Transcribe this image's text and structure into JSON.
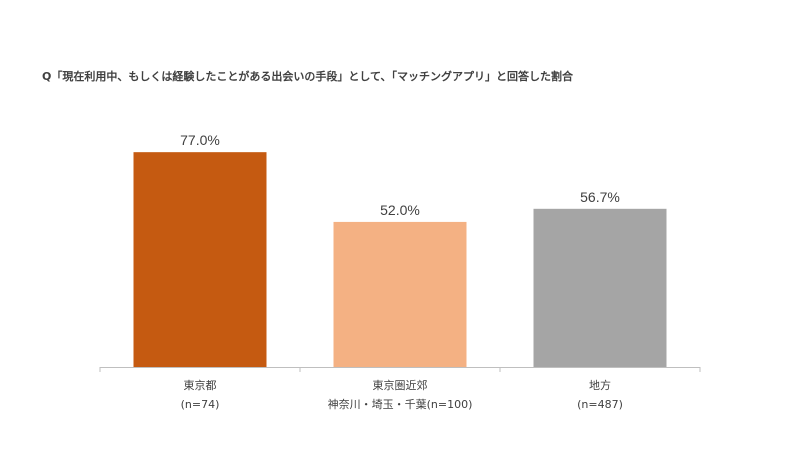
{
  "chart_data": {
    "type": "bar",
    "title": "Q「現在利用中、もしくは経験したことがある出会いの手段」として、「マッチングアプリ」と回答した割合",
    "categories": [
      {
        "lines": [
          "東京都",
          "(n=74)"
        ]
      },
      {
        "lines": [
          "東京圏近郊",
          "神奈川・埼玉・千葉(n=100)"
        ]
      },
      {
        "lines": [
          "地方",
          "(n=487)"
        ]
      }
    ],
    "values": [
      77.0,
      52.0,
      56.7
    ],
    "value_labels": [
      "77.0%",
      "52.0%",
      "56.7%"
    ],
    "colors": [
      "#c55a11",
      "#f4b183",
      "#a5a5a5"
    ],
    "axis_color": "#bfbfbf",
    "ylim": [
      0,
      100
    ],
    "grid": false,
    "legend": "none"
  }
}
